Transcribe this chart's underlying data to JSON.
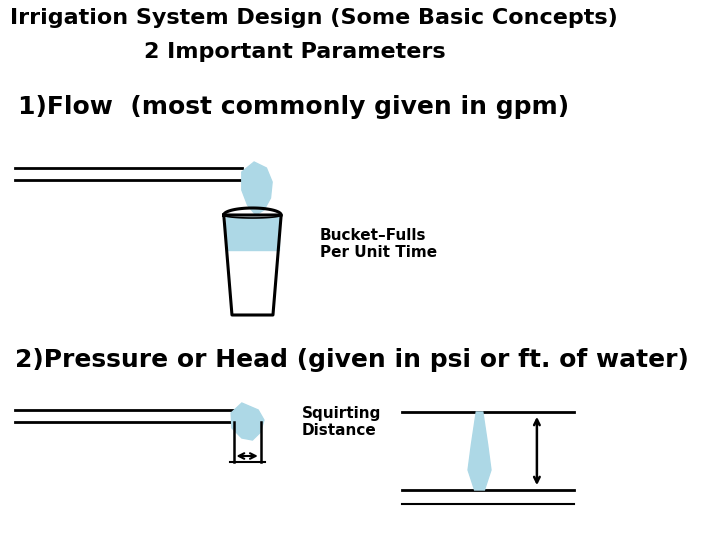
{
  "title_line1": "Irrigation System Design (Some Basic Concepts)",
  "title_line2": "2 Important Parameters",
  "section1_text": "1)Flow  (most commonly given in gpm)",
  "section2_text": "2)Pressure or Head (given in psi or ft. of water)",
  "bucket_label": "Bucket–Fulls\nPer Unit Time",
  "squirt_label": "Squirting\nDistance",
  "bg_color": "#ffffff",
  "text_color": "#000000",
  "water_color": "#add8e6",
  "pipe_color": "#000000",
  "title_fontsize": 16,
  "section_fontsize": 18,
  "label_fontsize": 11
}
